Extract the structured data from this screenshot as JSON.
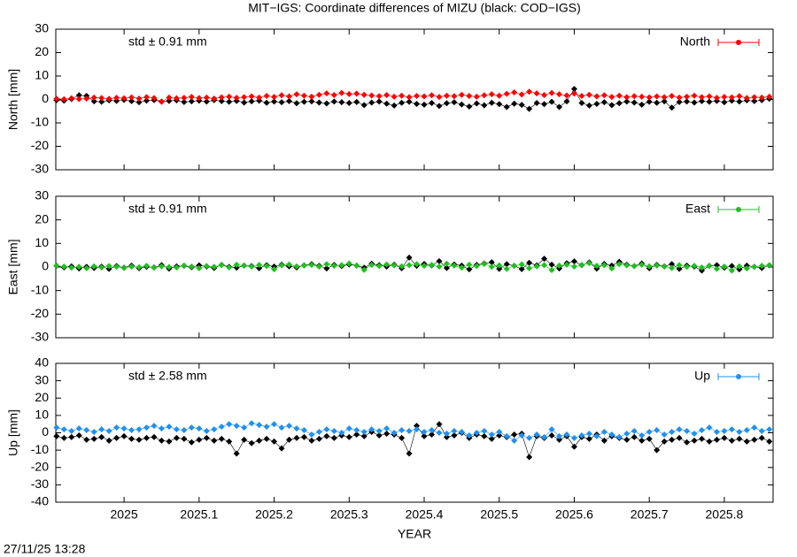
{
  "title": "MIT−IGS: Coordinate differences of MIZU (black: COD−IGS)",
  "footer": "27/11/25 13:28",
  "chart_data": [
    {
      "type": "line",
      "ylabel": "North [mm]",
      "annotation": "std ± 0.91 mm",
      "xlim": [
        2024.909,
        2025.865
      ],
      "xticks": [
        2025,
        2025.1,
        2025.2,
        2025.3,
        2025.4,
        2025.5,
        2025.6,
        2025.7,
        2025.8
      ],
      "ylim": [
        -30,
        30
      ],
      "yticks": [
        -30,
        -20,
        -10,
        0,
        10,
        20,
        30
      ],
      "x": [
        2024.91,
        2024.92,
        2024.93,
        2024.94,
        2024.95,
        2024.96,
        2024.97,
        2024.98,
        2024.99,
        2025,
        2025.01,
        2025.02,
        2025.03,
        2025.04,
        2025.05,
        2025.06,
        2025.07,
        2025.08,
        2025.09,
        2025.1,
        2025.11,
        2025.12,
        2025.13,
        2025.14,
        2025.15,
        2025.16,
        2025.17,
        2025.18,
        2025.19,
        2025.2,
        2025.21,
        2025.22,
        2025.23,
        2025.24,
        2025.25,
        2025.26,
        2025.27,
        2025.28,
        2025.29,
        2025.3,
        2025.31,
        2025.32,
        2025.33,
        2025.34,
        2025.35,
        2025.36,
        2025.37,
        2025.38,
        2025.39,
        2025.4,
        2025.41,
        2025.42,
        2025.43,
        2025.44,
        2025.45,
        2025.46,
        2025.47,
        2025.48,
        2025.49,
        2025.5,
        2025.51,
        2025.52,
        2025.53,
        2025.54,
        2025.55,
        2025.56,
        2025.57,
        2025.58,
        2025.59,
        2025.6,
        2025.61,
        2025.62,
        2025.63,
        2025.64,
        2025.65,
        2025.66,
        2025.67,
        2025.68,
        2025.69,
        2025.7,
        2025.71,
        2025.72,
        2025.73,
        2025.74,
        2025.75,
        2025.76,
        2025.77,
        2025.78,
        2025.79,
        2025.8,
        2025.81,
        2025.82,
        2025.83,
        2025.84,
        2025.85,
        2025.86
      ],
      "series": [
        {
          "color": "#000000",
          "values": [
            -0.3,
            -0.5,
            0.2,
            1.8,
            1.5,
            -0.8,
            -1.0,
            -0.4,
            -0.6,
            -0.2,
            -0.7,
            -1.2,
            -0.5,
            -0.3,
            -0.9,
            -0.6,
            -0.4,
            -1.1,
            -0.8,
            -0.5,
            -0.9,
            -0.3,
            -0.7,
            -1.0,
            -0.6,
            -1.3,
            -0.8,
            -0.5,
            -1.4,
            -0.9,
            -1.2,
            -0.7,
            -1.6,
            -1.0,
            -0.8,
            -1.3,
            -1.7,
            -0.9,
            -1.2,
            -1.5,
            -1.1,
            -2.4,
            -1.3,
            -0.9,
            -1.8,
            -2.6,
            -1.4,
            -1.0,
            -1.9,
            -2.2,
            -1.5,
            -2.8,
            -1.6,
            -1.2,
            -2.1,
            -3.0,
            -1.7,
            -2.5,
            -1.4,
            -2.0,
            -3.2,
            -1.8,
            -2.3,
            -4.0,
            -1.5,
            -2.0,
            -1.0,
            -3.2,
            -0.8,
            4.5,
            -1.5,
            -2.6,
            -1.9,
            -1.2,
            -2.4,
            -1.6,
            -0.9,
            -1.3,
            -2.2,
            -1.0,
            -1.4,
            -0.8,
            -3.5,
            -1.1,
            -0.9,
            -1.3,
            -0.7,
            -1.0,
            -0.6,
            -1.2,
            -0.5,
            -0.9,
            -0.4,
            -0.7,
            -0.3,
            0.3
          ]
        },
        {
          "name": "North",
          "color": "#ff0000",
          "values": [
            0.3,
            0.1,
            0.5,
            0.2,
            0.4,
            0.8,
            0.6,
            0.3,
            0.7,
            0.5,
            0.9,
            0.4,
            1.0,
            0.6,
            -1.0,
            0.8,
            0.5,
            0.7,
            1.1,
            0.6,
            0.8,
            0.4,
            0.9,
            1.2,
            0.7,
            1.0,
            1.3,
            0.8,
            1.5,
            1.1,
            1.8,
            1.3,
            2.2,
            1.6,
            1.2,
            2.0,
            2.6,
            1.9,
            2.8,
            2.3,
            2.5,
            2.0,
            1.7,
            1.4,
            1.9,
            1.2,
            1.6,
            1.0,
            1.5,
            1.3,
            1.8,
            1.1,
            1.6,
            1.4,
            2.0,
            1.5,
            1.2,
            1.8,
            2.2,
            1.6,
            2.4,
            3.0,
            2.1,
            3.3,
            2.6,
            1.9,
            2.8,
            2.2,
            1.7,
            2.5,
            1.5,
            2.0,
            1.3,
            1.8,
            1.1,
            1.6,
            1.0,
            1.4,
            1.2,
            0.9,
            1.3,
            1.0,
            1.5,
            0.8,
            1.2,
            1.6,
            1.0,
            1.3,
            0.7,
            1.1,
            0.9,
            1.4,
            0.6,
            1.0,
            0.8,
            1.2
          ]
        }
      ]
    },
    {
      "type": "line",
      "ylabel": "East [mm]",
      "annotation": "std ± 0.91 mm",
      "xlim": [
        2024.909,
        2025.865
      ],
      "xticks": [
        2025,
        2025.1,
        2025.2,
        2025.3,
        2025.4,
        2025.5,
        2025.6,
        2025.7,
        2025.8
      ],
      "ylim": [
        -30,
        30
      ],
      "yticks": [
        -30,
        -20,
        -10,
        0,
        10,
        20,
        30
      ],
      "x": [
        2024.91,
        2024.92,
        2024.93,
        2024.94,
        2024.95,
        2024.96,
        2024.97,
        2024.98,
        2024.99,
        2025,
        2025.01,
        2025.02,
        2025.03,
        2025.04,
        2025.05,
        2025.06,
        2025.07,
        2025.08,
        2025.09,
        2025.1,
        2025.11,
        2025.12,
        2025.13,
        2025.14,
        2025.15,
        2025.16,
        2025.17,
        2025.18,
        2025.19,
        2025.2,
        2025.21,
        2025.22,
        2025.23,
        2025.24,
        2025.25,
        2025.26,
        2025.27,
        2025.28,
        2025.29,
        2025.3,
        2025.31,
        2025.32,
        2025.33,
        2025.34,
        2025.35,
        2025.36,
        2025.37,
        2025.38,
        2025.39,
        2025.4,
        2025.41,
        2025.42,
        2025.43,
        2025.44,
        2025.45,
        2025.46,
        2025.47,
        2025.48,
        2025.49,
        2025.5,
        2025.51,
        2025.52,
        2025.53,
        2025.54,
        2025.55,
        2025.56,
        2025.57,
        2025.58,
        2025.59,
        2025.6,
        2025.61,
        2025.62,
        2025.63,
        2025.64,
        2025.65,
        2025.66,
        2025.67,
        2025.68,
        2025.69,
        2025.7,
        2025.71,
        2025.72,
        2025.73,
        2025.74,
        2025.75,
        2025.76,
        2025.77,
        2025.78,
        2025.79,
        2025.8,
        2025.81,
        2025.82,
        2025.83,
        2025.84,
        2025.85,
        2025.86
      ],
      "series": [
        {
          "color": "#000000",
          "values": [
            0.5,
            -0.2,
            0.3,
            -0.6,
            0.1,
            -0.4,
            0.2,
            -0.8,
            0.4,
            -0.3,
            0.6,
            -0.5,
            0.1,
            -0.2,
            0.8,
            -0.7,
            0.3,
            0.5,
            -0.1,
            0.7,
            0.2,
            -0.4,
            0.9,
            0.1,
            -0.3,
            0.6,
            0.4,
            -0.5,
            0.8,
            0.2,
            1.0,
            0.3,
            -0.2,
            0.7,
            1.2,
            0.5,
            -0.6,
            0.9,
            0.4,
            1.1,
            0.6,
            -0.3,
            1.4,
            0.8,
            0.2,
            1.0,
            -0.5,
            4.0,
            0.5,
            1.3,
            0.7,
            2.5,
            -0.4,
            1.1,
            0.6,
            -1.0,
            0.9,
            1.5,
            2.0,
            -0.8,
            1.2,
            0.5,
            -0.9,
            1.8,
            0.7,
            3.5,
            1.0,
            -0.6,
            1.6,
            2.4,
            0.8,
            1.9,
            -0.7,
            1.3,
            0.6,
            2.2,
            1.0,
            0.4,
            1.5,
            -0.5,
            0.9,
            0.3,
            1.2,
            -0.8,
            0.6,
            0.2,
            -1.5,
            0.5,
            0.8,
            -0.3,
            0.4,
            -1.0,
            0.6,
            0.1,
            -0.4,
            0.7
          ]
        },
        {
          "name": "East",
          "color": "#20c020",
          "values": [
            0.6,
            0.2,
            -0.3,
            0.1,
            -0.5,
            0.3,
            -0.2,
            0.4,
            0.1,
            -0.4,
            0.2,
            -0.1,
            0.5,
            -0.3,
            0.3,
            0.0,
            -0.2,
            0.6,
            0.2,
            -0.5,
            0.4,
            0.1,
            0.8,
            -0.2,
            1.0,
            0.5,
            0.2,
            0.9,
            0.4,
            -1.0,
            0.7,
            1.1,
            0.3,
            0.6,
            0.9,
            0.2,
            1.2,
            0.5,
            0.8,
            1.5,
            0.6,
            -1.2,
            0.9,
            0.4,
            1.1,
            0.7,
            0.3,
            0.8,
            1.2,
            0.5,
            0.9,
            0.2,
            1.4,
            0.6,
            -0.3,
            1.0,
            0.4,
            1.3,
            0.1,
            0.7,
            -0.8,
            0.5,
            1.1,
            -0.5,
            0.3,
            0.8,
            -1.3,
            0.6,
            1.0,
            0.2,
            0.9,
            1.6,
            0.5,
            0.8,
            -0.6,
            1.2,
            0.7,
            0.4,
            1.0,
            0.3,
            0.6,
            0.2,
            -0.4,
            0.8,
            0.1,
            0.5,
            -0.2,
            0.4,
            -0.8,
            0.2,
            -1.5,
            0.3,
            -0.6,
            0.1,
            0.5,
            0.8
          ]
        }
      ]
    },
    {
      "type": "line",
      "ylabel": "Up [mm]",
      "annotation": "std ± 2.58 mm",
      "xlabel": "YEAR",
      "xlim": [
        2024.909,
        2025.865
      ],
      "xticks": [
        2025,
        2025.1,
        2025.2,
        2025.3,
        2025.4,
        2025.5,
        2025.6,
        2025.7,
        2025.8
      ],
      "ylim": [
        -40,
        40
      ],
      "yticks": [
        -40,
        -30,
        -20,
        -10,
        0,
        10,
        20,
        30,
        40
      ],
      "x": [
        2024.91,
        2024.92,
        2024.93,
        2024.94,
        2024.95,
        2024.96,
        2024.97,
        2024.98,
        2024.99,
        2025,
        2025.01,
        2025.02,
        2025.03,
        2025.04,
        2025.05,
        2025.06,
        2025.07,
        2025.08,
        2025.09,
        2025.1,
        2025.11,
        2025.12,
        2025.13,
        2025.14,
        2025.15,
        2025.16,
        2025.17,
        2025.18,
        2025.19,
        2025.2,
        2025.21,
        2025.22,
        2025.23,
        2025.24,
        2025.25,
        2025.26,
        2025.27,
        2025.28,
        2025.29,
        2025.3,
        2025.31,
        2025.32,
        2025.33,
        2025.34,
        2025.35,
        2025.36,
        2025.37,
        2025.38,
        2025.39,
        2025.4,
        2025.41,
        2025.42,
        2025.43,
        2025.44,
        2025.45,
        2025.46,
        2025.47,
        2025.48,
        2025.49,
        2025.5,
        2025.51,
        2025.52,
        2025.53,
        2025.54,
        2025.55,
        2025.56,
        2025.57,
        2025.58,
        2025.59,
        2025.6,
        2025.61,
        2025.62,
        2025.63,
        2025.64,
        2025.65,
        2025.66,
        2025.67,
        2025.68,
        2025.69,
        2025.7,
        2025.71,
        2025.72,
        2025.73,
        2025.74,
        2025.75,
        2025.76,
        2025.77,
        2025.78,
        2025.79,
        2025.8,
        2025.81,
        2025.82,
        2025.83,
        2025.84,
        2025.85,
        2025.86
      ],
      "series": [
        {
          "color": "#000000",
          "values": [
            -2.0,
            -3.0,
            -2.5,
            -1.5,
            -4.0,
            -3.5,
            -2.5,
            -4.5,
            -3.0,
            -2.0,
            -3.5,
            -4.0,
            -3.0,
            -2.5,
            -4.5,
            -5.0,
            -3.0,
            -3.5,
            -5.5,
            -4.0,
            -3.0,
            -4.5,
            -3.5,
            -5.0,
            -12.0,
            -4.0,
            -6.0,
            -4.5,
            -3.5,
            -5.0,
            -9.0,
            -4.0,
            -3.0,
            -2.5,
            -4.5,
            -3.5,
            -2.0,
            -3.0,
            -1.5,
            -2.5,
            -1.0,
            -2.0,
            0.5,
            -1.5,
            -0.5,
            -1.0,
            -3.0,
            -12.0,
            4.0,
            -2.0,
            -1.0,
            5.0,
            -2.5,
            -1.5,
            0.0,
            -3.0,
            -1.0,
            -2.0,
            -3.5,
            -1.5,
            -2.5,
            -1.0,
            -0.5,
            -14.0,
            -2.0,
            -3.0,
            -1.5,
            -4.0,
            -2.0,
            -8.0,
            -2.5,
            -3.5,
            -1.0,
            -4.5,
            -2.0,
            -3.0,
            -4.0,
            -2.5,
            -4.5,
            -3.5,
            -10.0,
            -5.0,
            -4.0,
            -3.0,
            -5.5,
            -4.5,
            -3.5,
            -5.0,
            -4.0,
            -3.0,
            -4.5,
            -3.5,
            -5.0,
            -4.0,
            -3.0,
            -5.0
          ]
        },
        {
          "name": "Up",
          "color": "#2090f0",
          "values": [
            3.0,
            2.0,
            1.0,
            2.5,
            1.5,
            0.5,
            2.0,
            1.0,
            3.0,
            2.5,
            1.5,
            2.0,
            3.0,
            4.0,
            2.5,
            3.5,
            2.0,
            1.5,
            3.0,
            2.5,
            1.0,
            2.0,
            3.5,
            5.0,
            4.0,
            3.0,
            5.5,
            4.5,
            3.5,
            5.0,
            3.0,
            4.0,
            2.5,
            1.5,
            -1.0,
            0.5,
            2.0,
            1.0,
            0.0,
            2.5,
            1.5,
            0.5,
            2.0,
            1.0,
            2.5,
            0.0,
            1.5,
            1.0,
            2.0,
            0.5,
            1.5,
            0.0,
            -0.5,
            1.0,
            0.5,
            -1.5,
            0.0,
            1.0,
            -1.0,
            0.5,
            -2.0,
            -4.5,
            -1.5,
            -3.0,
            -1.0,
            -2.5,
            2.0,
            -2.0,
            -1.0,
            -3.0,
            -1.5,
            -0.5,
            -2.0,
            0.5,
            -1.0,
            -2.5,
            -0.5,
            1.0,
            -1.5,
            0.5,
            1.5,
            -1.0,
            0.5,
            2.0,
            1.0,
            -0.5,
            1.5,
            3.0,
            0.5,
            1.0,
            2.0,
            0.5,
            1.5,
            3.0,
            1.0,
            2.0
          ]
        }
      ]
    }
  ]
}
